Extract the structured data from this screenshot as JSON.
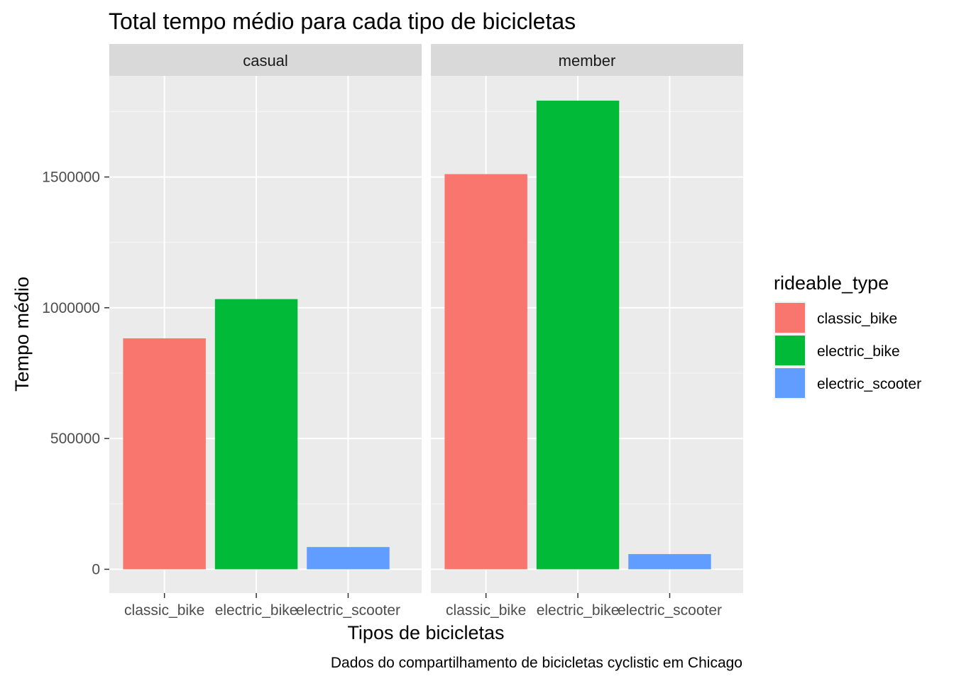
{
  "chart_data": {
    "type": "bar",
    "title": "Total tempo médio para cada tipo de bicicletas",
    "xlabel": "Tipos de bicicletas",
    "ylabel": "Tempo médio",
    "caption": "Dados do compartilhamento de bicicletas cyclistic em Chicago",
    "categories": [
      "classic_bike",
      "electric_bike",
      "electric_scooter"
    ],
    "facets": [
      {
        "name": "casual",
        "values": [
          883000,
          1033000,
          85000
        ]
      },
      {
        "name": "member",
        "values": [
          1511000,
          1792000,
          58000
        ]
      }
    ],
    "ylim": [
      0,
      1880000
    ],
    "yticks": [
      0,
      500000,
      1000000,
      1500000
    ],
    "ytick_labels": [
      "0",
      "500000",
      "1000000",
      "1500000"
    ],
    "grid": true,
    "legend": {
      "title": "rideable_type",
      "position": "right",
      "entries": [
        "classic_bike",
        "electric_bike",
        "electric_scooter"
      ]
    },
    "colors": {
      "classic_bike": "#F8766D",
      "electric_bike": "#00BA38",
      "electric_scooter": "#619CFF",
      "panel_bg": "#EBEBEB",
      "strip_bg": "#D9D9D9",
      "grid_major": "#FFFFFF",
      "tick": "#333333"
    }
  }
}
